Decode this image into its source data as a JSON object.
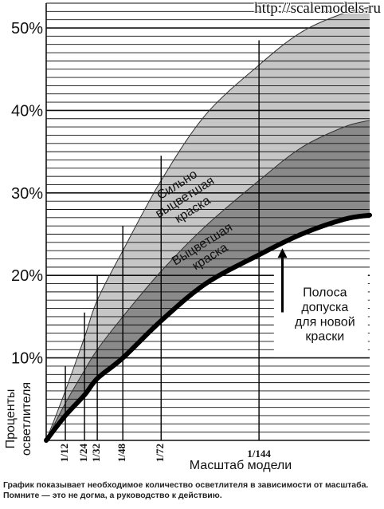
{
  "watermark": "http://scalemodels.ru",
  "caption": "График показывает необходимое количество осветлителя в зависимости от масштаба. Помните — это не догма, а руководство к действию.",
  "chart_data": {
    "type": "area",
    "xlabel": "Масштаб модели",
    "ylabel": "Проценты осветлителя",
    "ylim": [
      0,
      53
    ],
    "yticks": [
      10,
      20,
      30,
      40,
      50
    ],
    "ytick_labels": [
      "10%",
      "20%",
      "30%",
      "40%",
      "50%"
    ],
    "grid": true,
    "scales": [
      {
        "label": "1/12",
        "x": 0.09
      },
      {
        "label": "1/24",
        "x": 0.18
      },
      {
        "label": "1/32",
        "x": 0.24
      },
      {
        "label": "1/48",
        "x": 0.36
      },
      {
        "label": "1/72",
        "x": 0.54
      },
      {
        "label": "1/144",
        "x": 1.0
      }
    ],
    "xlim": [
      0,
      1.52
    ],
    "series": [
      {
        "name": "Полоса допуска для новой краски",
        "x": [
          0,
          0.09,
          0.18,
          0.24,
          0.36,
          0.54,
          0.75,
          1.0,
          1.2,
          1.4,
          1.52
        ],
        "values": [
          0,
          3,
          5.5,
          7.5,
          10,
          14.5,
          19,
          22.5,
          25,
          26.8,
          27.3
        ]
      },
      {
        "name": "Выцветшая краска",
        "x": [
          0,
          0.09,
          0.18,
          0.24,
          0.36,
          0.54,
          0.75,
          1.0,
          1.2,
          1.4,
          1.52
        ],
        "values": [
          0,
          4.5,
          8.5,
          11,
          15,
          20.5,
          26,
          31.5,
          35.5,
          38,
          38.8
        ]
      },
      {
        "name": "Сильно выцветшая краска",
        "x": [
          0,
          0.09,
          0.18,
          0.24,
          0.36,
          0.54,
          0.75,
          1.0,
          1.2,
          1.4,
          1.52
        ],
        "values": [
          0,
          6,
          12.5,
          17,
          23,
          31.5,
          39.5,
          45.5,
          49.5,
          51.8,
          52.5
        ]
      }
    ],
    "labels": {
      "strong": [
        "Сильно",
        "выцветшая",
        "краска"
      ],
      "faded": [
        "Выцветшая",
        "краска"
      ],
      "new": [
        "Полоса",
        "допуска",
        "для новой",
        "краски"
      ]
    },
    "colors": {
      "band_strong": "#c6c6c6",
      "band_faded": "#8a8a8a",
      "curve_new": "#000000",
      "grid": "#111111",
      "below_new": "#ffffff"
    }
  }
}
